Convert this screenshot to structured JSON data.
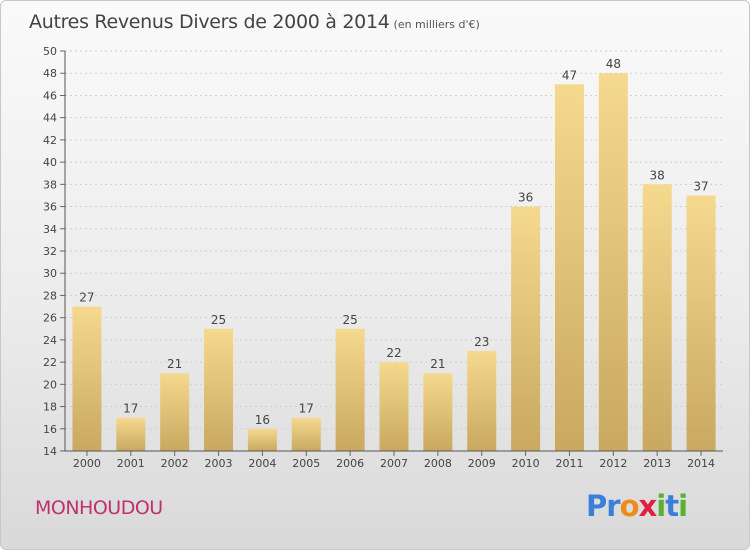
{
  "header": {
    "title": "Autres Revenus Divers de 2000 à 2014",
    "unit": "(en milliers d'€)"
  },
  "footer": {
    "town": "MONHOUDOU",
    "logo": [
      "P",
      "r",
      "o",
      "x",
      "i",
      "t",
      "i"
    ]
  },
  "colors": {
    "bar_light": "#f5d98f",
    "bar_dark": "#c9a860",
    "town": "#c0306a",
    "logo": [
      "#3a7fd8",
      "#3a7fd8",
      "#f08a1c",
      "#e02040",
      "#5ab030",
      "#3a7fd8",
      "#5ab030"
    ]
  },
  "chart_data": {
    "type": "bar",
    "categories": [
      "2000",
      "2001",
      "2002",
      "2003",
      "2004",
      "2005",
      "2006",
      "2007",
      "2008",
      "2009",
      "2010",
      "2011",
      "2012",
      "2013",
      "2014"
    ],
    "values": [
      27,
      17,
      21,
      25,
      16,
      17,
      25,
      22,
      21,
      23,
      36,
      47,
      48,
      38,
      37
    ],
    "ylim": [
      14,
      50
    ],
    "yticks": [
      14,
      16,
      18,
      20,
      22,
      24,
      26,
      28,
      30,
      32,
      34,
      36,
      38,
      40,
      42,
      44,
      46,
      48,
      50
    ],
    "grid": true
  }
}
